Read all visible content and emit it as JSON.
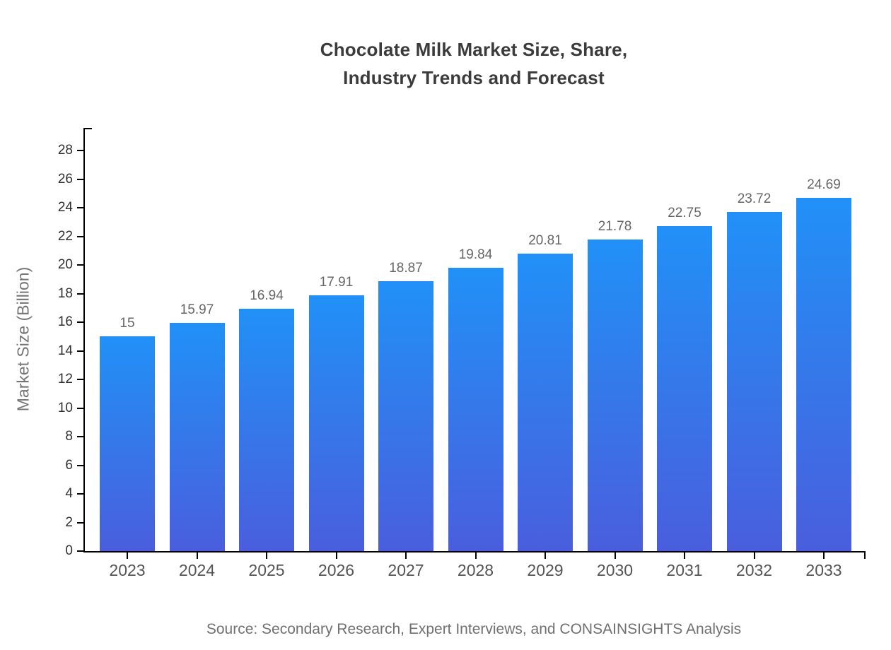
{
  "page": {
    "background": "#ffffff"
  },
  "chart_data": {
    "type": "bar",
    "title_line1": "Chocolate Milk Market Size, Share,",
    "title_line2": "Industry Trends and Forecast",
    "ylabel": "Market Size (Billion)",
    "xlabel": "",
    "categories": [
      "2023",
      "2024",
      "2025",
      "2026",
      "2027",
      "2028",
      "2029",
      "2030",
      "2031",
      "2032",
      "2033"
    ],
    "values": [
      15,
      15.97,
      16.94,
      17.91,
      18.87,
      19.84,
      20.81,
      21.78,
      22.75,
      23.72,
      24.69
    ],
    "yticks": [
      0,
      2,
      4,
      6,
      8,
      10,
      12,
      14,
      16,
      18,
      20,
      22,
      24,
      26,
      28
    ],
    "ylim": [
      0,
      29.6
    ],
    "grid": false,
    "legend": "none",
    "value_labels_shown": true,
    "colors": {
      "bar_gradient_top": "#2191f7",
      "bar_gradient_bottom": "#4a5edd",
      "axis": "#000000",
      "title": "#3b3b3b",
      "value_label": "#666666",
      "x_tick_label": "#555555",
      "y_tick_label": "#2f2f2f",
      "ylabel": "#757575",
      "source": "#707070"
    }
  },
  "footer": {
    "source": "Source: Secondary Research, Expert Interviews, and CONSAINSIGHTS Analysis"
  }
}
